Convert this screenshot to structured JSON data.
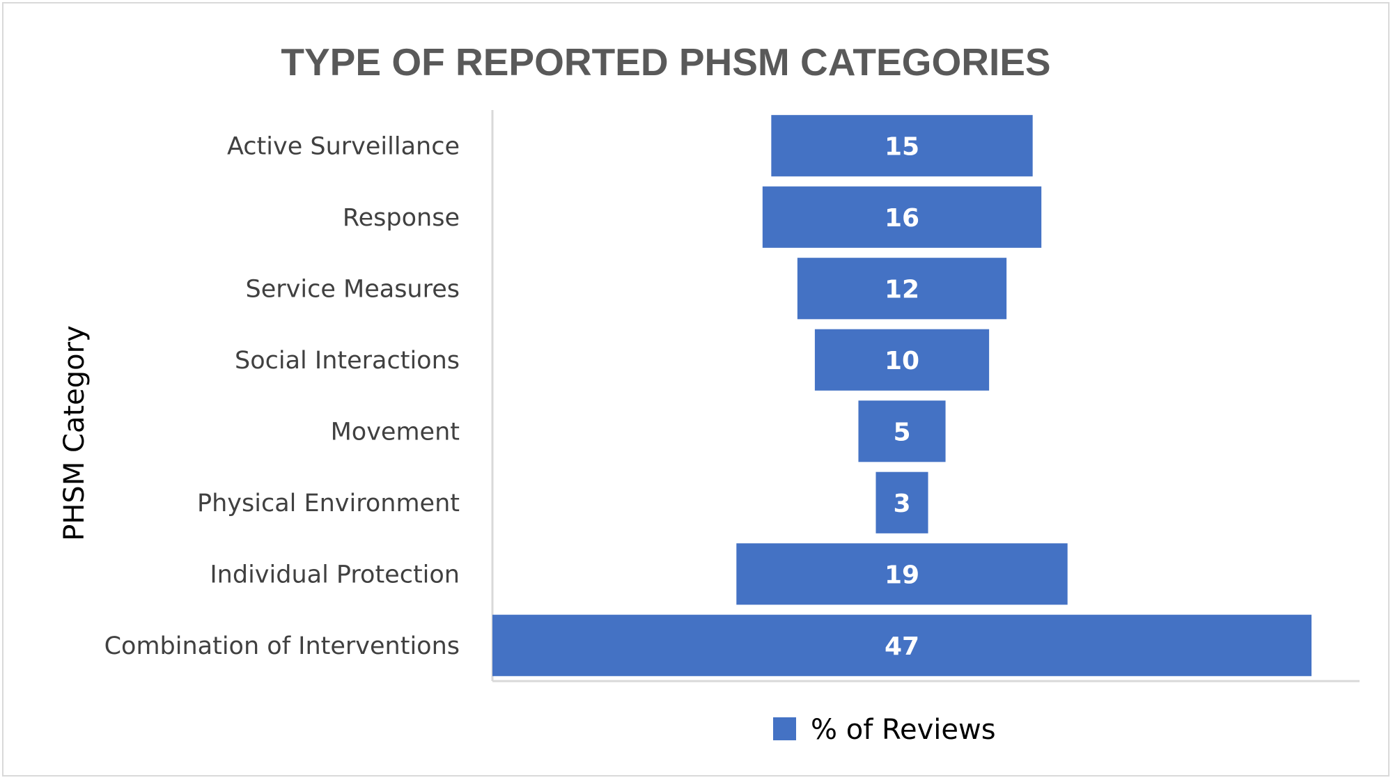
{
  "chart_data": {
    "type": "bar",
    "orientation": "horizontal",
    "layout": "funnel-centered",
    "title": "TYPE OF REPORTED PHSM CATEGORIES",
    "ylabel": "PHSM Category",
    "xlabel": "",
    "categories": [
      "Active Surveillance",
      "Response",
      "Service Measures",
      "Social Interactions",
      "Movement",
      "Physical Environment",
      "Individual Protection",
      "Combination of Interventions"
    ],
    "series": [
      {
        "name": "% of Reviews",
        "values": [
          15,
          16,
          12,
          10,
          5,
          3,
          19,
          47
        ],
        "color": "#4472c4"
      }
    ],
    "data_labels": true,
    "grid": false,
    "legend_position": "bottom"
  }
}
